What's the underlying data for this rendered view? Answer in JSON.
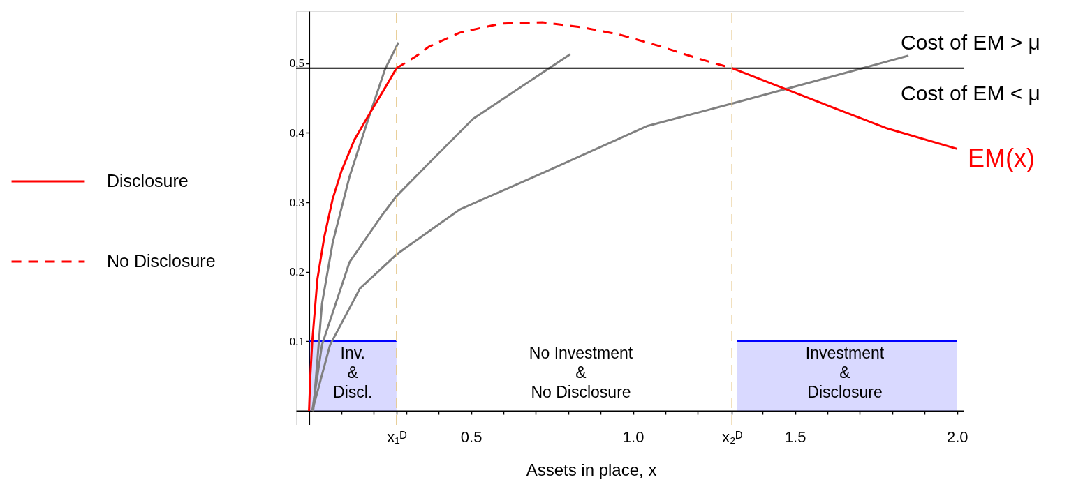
{
  "chart_data": {
    "type": "line",
    "xlabel": "Assets in place, x",
    "xlim": [
      -0.04,
      2.02
    ],
    "ylim": [
      -0.02,
      0.575
    ],
    "xticks": [
      {
        "value": 0.1,
        "label": null
      },
      {
        "value": 0.2,
        "label": null
      },
      {
        "value": 0.27,
        "label": "x₁ᴰ"
      },
      {
        "value": 0.3,
        "label": null
      },
      {
        "value": 0.4,
        "label": null
      },
      0.5,
      {
        "value": 0.6,
        "label": null
      },
      {
        "value": 0.7,
        "label": null
      },
      {
        "value": 0.8,
        "label": null
      },
      {
        "value": 0.9,
        "label": null
      },
      {
        "value": 1.0,
        "label": "1.0"
      },
      {
        "value": 1.1,
        "label": null
      },
      {
        "value": 1.2,
        "label": null
      },
      {
        "value": 1.305,
        "label": "x₂ᴰ"
      },
      {
        "value": 1.4,
        "label": null
      },
      1.5,
      {
        "value": 1.6,
        "label": null
      },
      {
        "value": 1.7,
        "label": null
      },
      {
        "value": 1.8,
        "label": null
      },
      {
        "value": 1.9,
        "label": null
      },
      {
        "value": 2.0,
        "label": "2.0"
      }
    ],
    "yticks": [
      0.1,
      0.2,
      0.3,
      0.4,
      0.5
    ],
    "grid": false,
    "legend": "left",
    "marker": "none",
    "series": [
      {
        "type": "area",
        "color": "#0000ff",
        "x": [
          0,
          0.27,
          null,
          1.32,
          2.0
        ],
        "values": [
          0.1,
          0.1,
          null,
          0.1,
          0.1
        ]
      },
      {
        "color": "#808080",
        "x": [
          0.013,
          0.04,
          0.073,
          0.125,
          0.183,
          0.235,
          0.276
        ],
        "values": [
          0,
          0.154,
          0.242,
          0.337,
          0.42,
          0.492,
          0.53
        ]
      },
      {
        "color": "#808080",
        "x": [
          0.01,
          0.04,
          0.125,
          0.226,
          0.27,
          0.38,
          0.506,
          0.806
        ],
        "values": [
          0,
          0.095,
          0.214,
          0.282,
          0.309,
          0.361,
          0.42,
          0.513
        ]
      },
      {
        "color": "#808080",
        "x": [
          0.01,
          0.065,
          0.157,
          0.27,
          0.466,
          0.73,
          1.045,
          1.305,
          1.677,
          1.85
        ],
        "values": [
          0,
          0.095,
          0.176,
          0.225,
          0.29,
          0.344,
          0.41,
          0.442,
          0.489,
          0.511
        ]
      },
      {
        "name": "Disclosure",
        "color": "#ff0000",
        "line_style": "solid",
        "x": [
          0,
          0.004,
          0.01,
          0.026,
          0.047,
          0.073,
          0.1,
          0.14,
          0.19,
          0.235,
          0.27,
          null,
          1.305,
          1.465,
          1.625,
          1.78,
          2.0
        ],
        "values": [
          0,
          0.05,
          0.1,
          0.19,
          0.25,
          0.305,
          0.345,
          0.39,
          0.43,
          0.465,
          0.493,
          null,
          0.493,
          0.464,
          0.435,
          0.407,
          0.377
        ]
      },
      {
        "name": "No Disclosure",
        "color": "#ff0000",
        "line_style": "dashed",
        "x": [
          0.27,
          0.33,
          0.37,
          0.465,
          0.59,
          0.72,
          0.84,
          0.96,
          1.08,
          1.2,
          1.305
        ],
        "values": [
          0.493,
          0.51,
          0.524,
          0.544,
          0.557,
          0.559,
          0.552,
          0.541,
          0.525,
          0.507,
          0.493
        ]
      }
    ],
    "ref_lines": [
      {
        "axis": "y",
        "value": 0.493,
        "color": "#000000",
        "line_style": "solid"
      },
      {
        "axis": "x",
        "value": 0.27,
        "color": "#e6c98e",
        "line_style": "dashed"
      },
      {
        "axis": "x",
        "value": 1.305,
        "color": "#e6c98e",
        "line_style": "dashed"
      }
    ],
    "annotations": [
      "Inv.\n&\nDiscl.",
      "No Investment\n&\nNo Disclosure",
      "Investment\n&\nDisclosure",
      "Cost of EM > μ",
      "Cost of EM < μ",
      "EM(x)"
    ]
  }
}
